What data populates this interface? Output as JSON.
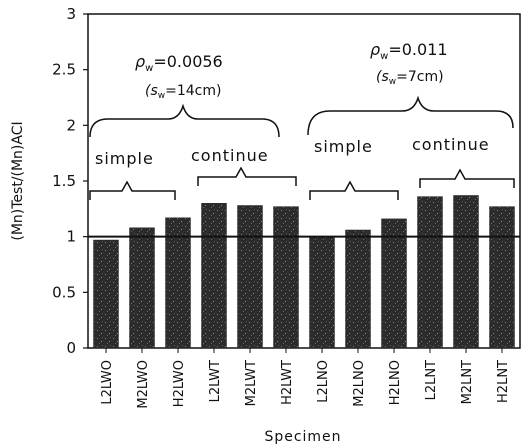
{
  "chart_data": {
    "type": "bar",
    "title": "",
    "xlabel": "Specimen",
    "ylabel": "(Mn)Test/(Mn)ACI",
    "ylim": [
      0,
      3
    ],
    "yticks": [
      "0",
      "0.5",
      "1",
      "1.5",
      "2",
      "2.5",
      "3"
    ],
    "yticks_values": [
      0,
      0.5,
      1,
      1.5,
      2,
      2.5,
      3
    ],
    "reference_line": 1.0,
    "categories": [
      "L2LWO",
      "M2LWO",
      "H2LWO",
      "L2LWT",
      "M2LWT",
      "H2LWT",
      "L2LNO",
      "M2LNO",
      "H2LNO",
      "L2LNT",
      "M2LNT",
      "H2LNT"
    ],
    "values": [
      0.97,
      1.08,
      1.17,
      1.3,
      1.28,
      1.27,
      1.0,
      1.06,
      1.16,
      1.36,
      1.37,
      1.27
    ],
    "bar_color": "#2a2a2a",
    "grid": false,
    "annotations": {
      "group1": {
        "rho": "ρ",
        "rho_sub": "w",
        "rho_value": "=0.0056",
        "spacing_open": "(s",
        "spacing_sub": "w",
        "spacing_value": "=14cm)"
      },
      "group2": {
        "rho": "ρ",
        "rho_sub": "w",
        "rho_value": "=0.011",
        "spacing_open": "(s",
        "spacing_sub": "w",
        "spacing_value": "=7cm)"
      },
      "sub_labels": [
        "simple",
        "continue",
        "simple",
        "continue"
      ]
    }
  }
}
